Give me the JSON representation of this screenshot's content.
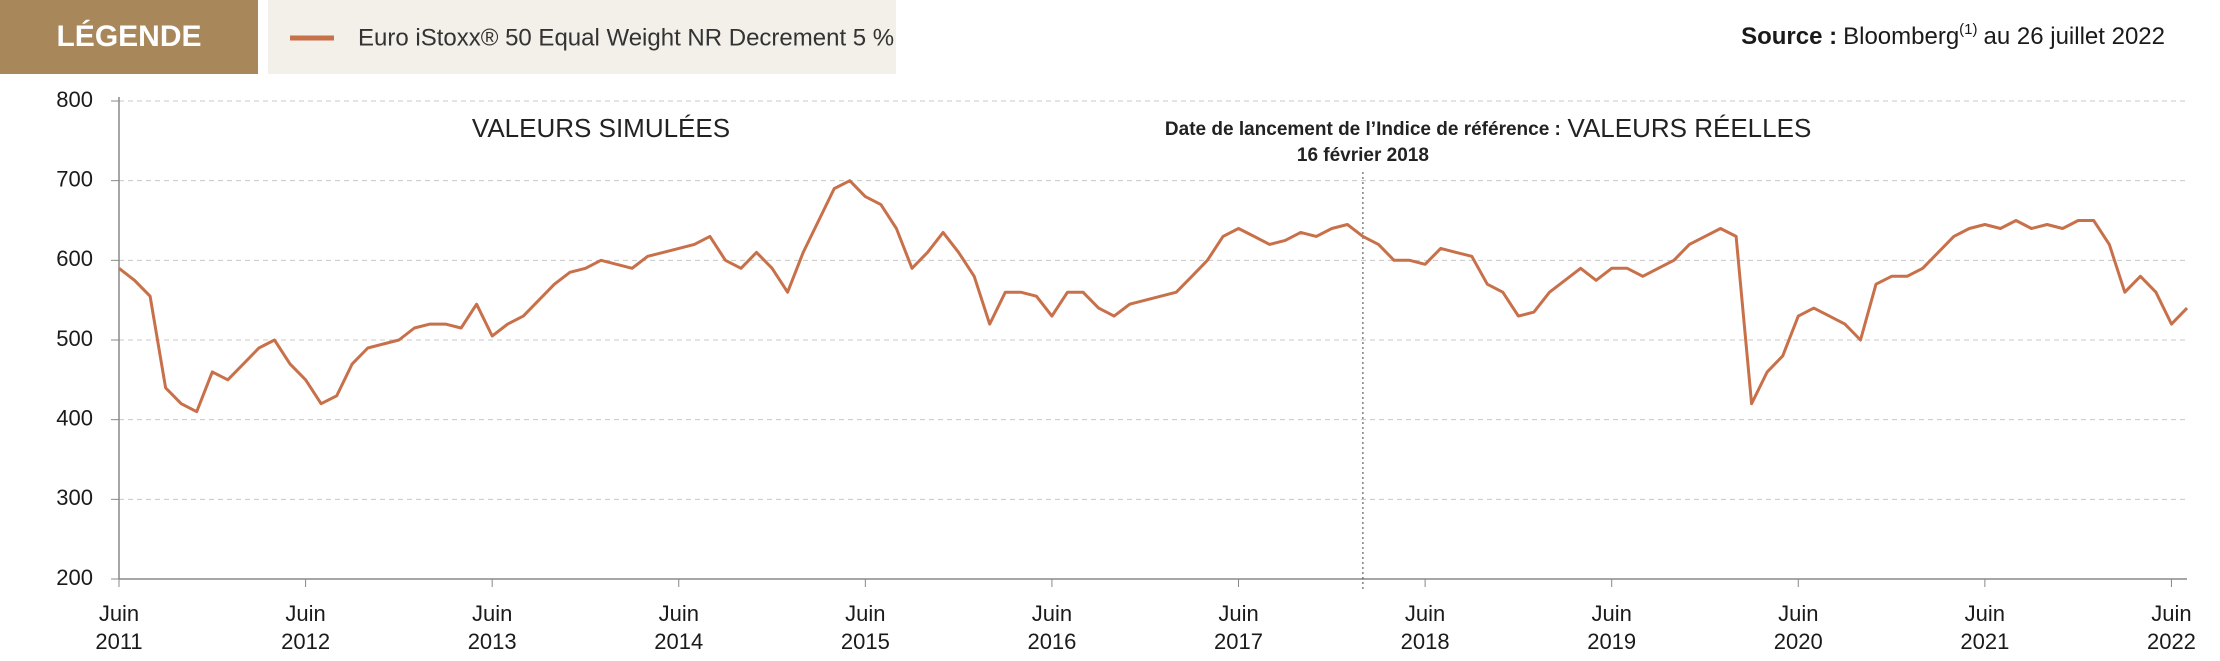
{
  "chart_data": {
    "type": "line",
    "legend_title": "LÉGENDE",
    "source_label": "Source :",
    "source_text": "Bloomberg",
    "source_note": "(1)",
    "source_date": "au 26 juillet 2022",
    "annotations": [
      {
        "text": "VALEURS SIMULÉES",
        "x": "2014-01"
      },
      {
        "text": "VALEURS RÉELLES",
        "x": "2019-11"
      }
    ],
    "launch": {
      "lines": [
        "Date de lancement de l’Indice de référence :",
        "16 février 2018"
      ],
      "x": "2018-02"
    },
    "xlim": [
      "2011-06",
      "2022-07"
    ],
    "xticks": [
      {
        "value": "2011-06",
        "label": "Juin 2011"
      },
      {
        "value": "2012-06",
        "label": "Juin 2012"
      },
      {
        "value": "2013-06",
        "label": "Juin 2013"
      },
      {
        "value": "2014-06",
        "label": "Juin 2014"
      },
      {
        "value": "2015-06",
        "label": "Juin 2015"
      },
      {
        "value": "2016-06",
        "label": "Juin 2016"
      },
      {
        "value": "2017-06",
        "label": "Juin 2017"
      },
      {
        "value": "2018-06",
        "label": "Juin 2018"
      },
      {
        "value": "2019-06",
        "label": "Juin 2019"
      },
      {
        "value": "2020-06",
        "label": "Juin 2020"
      },
      {
        "value": "2021-06",
        "label": "Juin 2021"
      },
      {
        "value": "2022-06",
        "label": "Juin 2022"
      }
    ],
    "ylim": [
      200,
      800
    ],
    "yticks": [
      200,
      300,
      400,
      500,
      600,
      700,
      800
    ],
    "grid": true,
    "x": [
      "2011-06",
      "2011-07",
      "2011-08",
      "2011-09",
      "2011-10",
      "2011-11",
      "2011-12",
      "2012-01",
      "2012-02",
      "2012-03",
      "2012-04",
      "2012-05",
      "2012-06",
      "2012-07",
      "2012-08",
      "2012-09",
      "2012-10",
      "2012-11",
      "2012-12",
      "2013-01",
      "2013-02",
      "2013-03",
      "2013-04",
      "2013-05",
      "2013-06",
      "2013-07",
      "2013-08",
      "2013-09",
      "2013-10",
      "2013-11",
      "2013-12",
      "2014-01",
      "2014-02",
      "2014-03",
      "2014-04",
      "2014-05",
      "2014-06",
      "2014-07",
      "2014-08",
      "2014-09",
      "2014-10",
      "2014-11",
      "2014-12",
      "2015-01",
      "2015-02",
      "2015-03",
      "2015-04",
      "2015-05",
      "2015-06",
      "2015-07",
      "2015-08",
      "2015-09",
      "2015-10",
      "2015-11",
      "2015-12",
      "2016-01",
      "2016-02",
      "2016-03",
      "2016-04",
      "2016-05",
      "2016-06",
      "2016-07",
      "2016-08",
      "2016-09",
      "2016-10",
      "2016-11",
      "2016-12",
      "2017-01",
      "2017-02",
      "2017-03",
      "2017-04",
      "2017-05",
      "2017-06",
      "2017-07",
      "2017-08",
      "2017-09",
      "2017-10",
      "2017-11",
      "2017-12",
      "2018-01",
      "2018-02",
      "2018-03",
      "2018-04",
      "2018-05",
      "2018-06",
      "2018-07",
      "2018-08",
      "2018-09",
      "2018-10",
      "2018-11",
      "2018-12",
      "2019-01",
      "2019-02",
      "2019-03",
      "2019-04",
      "2019-05",
      "2019-06",
      "2019-07",
      "2019-08",
      "2019-09",
      "2019-10",
      "2019-11",
      "2019-12",
      "2020-01",
      "2020-02",
      "2020-03",
      "2020-04",
      "2020-05",
      "2020-06",
      "2020-07",
      "2020-08",
      "2020-09",
      "2020-10",
      "2020-11",
      "2020-12",
      "2021-01",
      "2021-02",
      "2021-03",
      "2021-04",
      "2021-05",
      "2021-06",
      "2021-07",
      "2021-08",
      "2021-09",
      "2021-10",
      "2021-11",
      "2021-12",
      "2022-01",
      "2022-02",
      "2022-03",
      "2022-04",
      "2022-05",
      "2022-06",
      "2022-07"
    ],
    "series": [
      {
        "name": "Euro iStoxx® 50 Equal Weight NR Decrement 5 %",
        "color": "#c8704a",
        "values": [
          590,
          575,
          555,
          440,
          420,
          410,
          460,
          450,
          470,
          490,
          500,
          470,
          450,
          420,
          430,
          470,
          490,
          495,
          500,
          515,
          520,
          520,
          515,
          545,
          505,
          520,
          530,
          550,
          570,
          585,
          590,
          600,
          595,
          590,
          605,
          610,
          615,
          620,
          630,
          600,
          590,
          610,
          590,
          560,
          610,
          650,
          690,
          700,
          680,
          670,
          640,
          590,
          610,
          635,
          610,
          580,
          520,
          560,
          560,
          555,
          530,
          560,
          560,
          540,
          530,
          545,
          550,
          555,
          560,
          580,
          600,
          630,
          640,
          630,
          620,
          625,
          635,
          630,
          640,
          645,
          630,
          620,
          600,
          600,
          595,
          615,
          610,
          605,
          570,
          560,
          530,
          535,
          560,
          575,
          590,
          575,
          590,
          590,
          580,
          590,
          600,
          620,
          630,
          640,
          630,
          420,
          460,
          480,
          530,
          540,
          530,
          520,
          500,
          570,
          580,
          580,
          590,
          610,
          630,
          640,
          645,
          640,
          650,
          640,
          645,
          640,
          650,
          650,
          620,
          560,
          580,
          560,
          520,
          540
        ]
      }
    ]
  }
}
